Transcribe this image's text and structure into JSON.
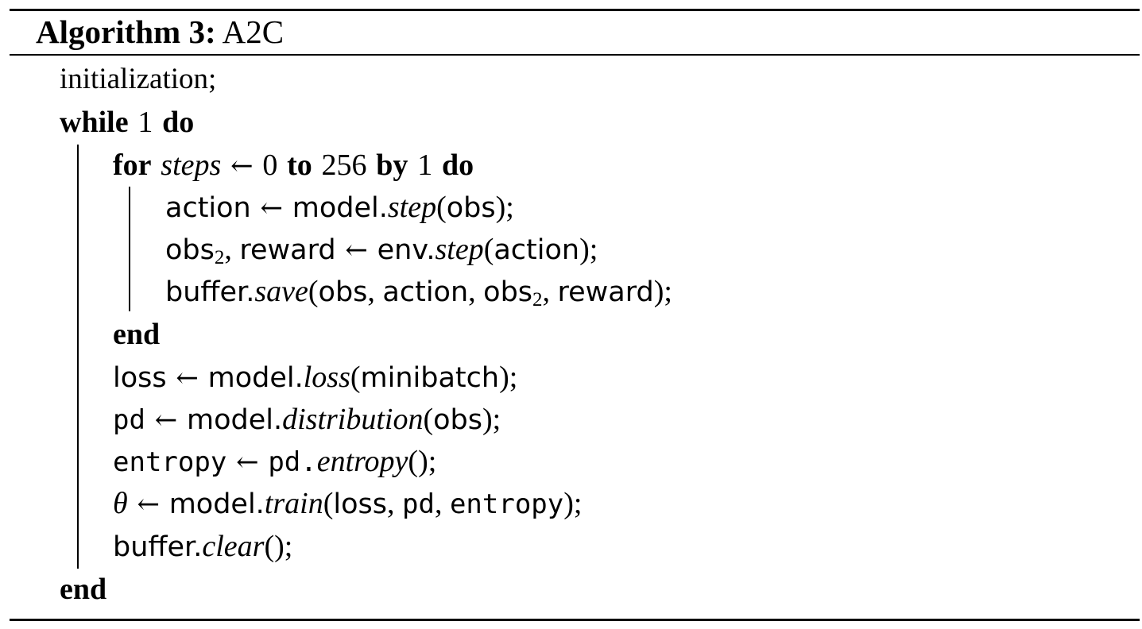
{
  "algorithm": {
    "label": "Algorithm 3:",
    "name": "A2C"
  },
  "lines": {
    "init": "initialization;",
    "while_kw": "while",
    "while_cond": "1",
    "do_kw": "do",
    "for_kw": "for",
    "for_var": "steps",
    "arrow": "←",
    "for_start": "0",
    "to_kw": "to",
    "for_end": "256",
    "by_kw": "by",
    "for_step": "1",
    "end_kw": "end",
    "action": "action",
    "model": "model.",
    "step_fn": "step",
    "obs": "obs",
    "obs2_base": "obs",
    "obs2_sub": "2",
    "reward": "reward",
    "env": "env.",
    "buffer": "buffer.",
    "save_fn": "save",
    "loss": "loss",
    "loss_fn": "loss",
    "minibatch": "minibatch",
    "pd": "pd",
    "distribution_fn": "distribution",
    "entropy": "entropy",
    "pd_dot": "pd.",
    "entropy_fn": "entropy",
    "theta": "θ",
    "train_fn": "train",
    "clear_fn": "clear"
  }
}
